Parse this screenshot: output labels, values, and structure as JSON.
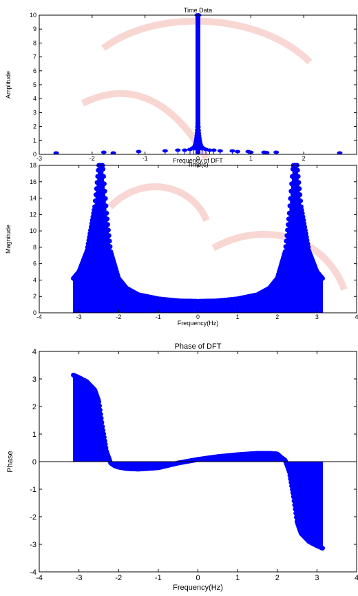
{
  "colors": {
    "series": "#0000ff",
    "background": "#ffffff",
    "axes": "#000000",
    "watermark": "#f7c8c4"
  },
  "chart_data": [
    {
      "type": "stem",
      "title": "Time Data",
      "xlabel": "Time(s)",
      "ylabel": "Amplitude",
      "xlim": [
        -3,
        3
      ],
      "ylim": [
        0,
        10
      ],
      "xticks": [
        -3,
        -2,
        -1,
        0,
        1,
        2
      ],
      "yticks": [
        0,
        1,
        2,
        3,
        4,
        5,
        6,
        7,
        8,
        9,
        10
      ],
      "grid": false,
      "note": "dense stems near t=0; isolated outliers shown",
      "outliers": {
        "x": [
          -2.68,
          -1.78,
          -1.6,
          -1.12,
          -0.62,
          -0.38,
          -0.25,
          -0.15,
          -0.08,
          0.08,
          0.15,
          0.22,
          0.3,
          0.42,
          0.65,
          0.75,
          0.95,
          1.0,
          1.25,
          1.3,
          1.48,
          2.68
        ],
        "y": [
          0.1,
          0.15,
          0.1,
          0.2,
          0.25,
          0.3,
          0.3,
          0.35,
          0.4,
          0.4,
          0.35,
          0.3,
          0.3,
          0.25,
          0.25,
          0.2,
          0.2,
          0.15,
          0.15,
          0.12,
          0.15,
          0.1
        ]
      },
      "peak": 10
    },
    {
      "type": "stem",
      "title": "Frequency of DFT",
      "xlabel": "Frequency(Hz)",
      "ylabel": "Magnitude",
      "xlim": [
        -4,
        4
      ],
      "ylim": [
        0,
        18
      ],
      "xticks": [
        -4,
        -3,
        -2,
        -1,
        0,
        1,
        2,
        3,
        4
      ],
      "yticks": [
        0,
        2,
        4,
        6,
        8,
        10,
        12,
        14,
        16,
        18
      ],
      "grid": false,
      "range": [
        -3.14,
        3.14
      ],
      "points": {
        "x": [
          -3.14,
          -3.0,
          -2.8,
          -2.6,
          -2.5,
          -2.45,
          -2.4,
          -2.3,
          -2.2,
          -2.0,
          -1.8,
          -1.5,
          -1.0,
          -0.5,
          0.0,
          0.5,
          1.0,
          1.5,
          1.8,
          2.0,
          2.2,
          2.3,
          2.4,
          2.45,
          2.5,
          2.6,
          2.8,
          3.0,
          3.14
        ],
        "y": [
          4.2,
          5.0,
          7.5,
          13.0,
          18.0,
          18.0,
          18.0,
          12.0,
          7.5,
          4.2,
          3.0,
          2.2,
          1.7,
          1.45,
          1.4,
          1.45,
          1.7,
          2.2,
          3.0,
          4.2,
          7.5,
          12.0,
          18.0,
          18.0,
          18.0,
          13.0,
          7.5,
          5.0,
          4.2
        ]
      }
    },
    {
      "type": "stem",
      "title": "Phase of DFT",
      "xlabel": "Frequency(Hz)",
      "ylabel": "Phase",
      "xlim": [
        -4,
        4
      ],
      "ylim": [
        -4,
        4
      ],
      "xticks": [
        -4,
        -3,
        -2,
        -1,
        0,
        1,
        2,
        3,
        4
      ],
      "yticks": [
        -4,
        -3,
        -2,
        -1,
        0,
        1,
        2,
        3,
        4
      ],
      "grid": false,
      "range": [
        -3.14,
        3.14
      ],
      "points": {
        "x": [
          -3.14,
          -3.0,
          -2.8,
          -2.6,
          -2.5,
          -2.4,
          -2.3,
          -2.2,
          -2.1,
          -2.0,
          -1.8,
          -1.5,
          -1.0,
          -0.5,
          0.0,
          0.5,
          1.0,
          1.5,
          1.8,
          2.0,
          2.1,
          2.2,
          2.3,
          2.4,
          2.5,
          2.6,
          2.8,
          3.0,
          3.14
        ],
        "y": [
          3.14,
          3.05,
          2.9,
          2.6,
          2.2,
          1.2,
          0.35,
          -0.05,
          -0.15,
          -0.2,
          -0.25,
          -0.27,
          -0.22,
          -0.05,
          0.08,
          0.18,
          0.25,
          0.3,
          0.3,
          0.28,
          0.15,
          0.05,
          -0.35,
          -1.2,
          -2.2,
          -2.6,
          -2.9,
          -3.05,
          -3.14
        ]
      }
    }
  ]
}
